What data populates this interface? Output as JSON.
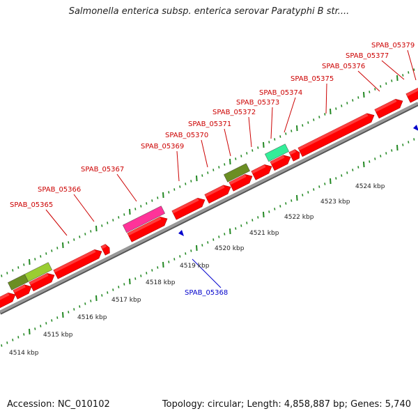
{
  "title": "Salmonella enterica subsp. enterica serovar Paratyphi B str....",
  "footer": {
    "accession": "Accession: NC_010102",
    "summary": "Topology: circular; Length: 4,858,887 bp; Genes: 5,740"
  },
  "colors": {
    "gene_forward": "#ff0000",
    "gene_reverse": "#0000cc",
    "label_forward": "#cc0000",
    "label_reverse": "#0000cc",
    "backbone": "#999999",
    "tick": "#228822",
    "feature_olive": "#6b8e23",
    "feature_pink": "#ff3399",
    "feature_teal": "#33ee99",
    "feature_lightgreen": "#9acd32"
  },
  "kbp_labels": [
    "4514 kbp",
    "4515 kbp",
    "4516 kbp",
    "4517 kbp",
    "4518 kbp",
    "4519 kbp",
    "4520 kbp",
    "4521 kbp",
    "4522 kbp",
    "4523 kbp",
    "4524 kbp"
  ],
  "gene_labels": [
    {
      "text": "SPAB_05365",
      "strand": "forward"
    },
    {
      "text": "SPAB_05366",
      "strand": "forward"
    },
    {
      "text": "SPAB_05367",
      "strand": "forward"
    },
    {
      "text": "SPAB_05368",
      "strand": "reverse"
    },
    {
      "text": "SPAB_05369",
      "strand": "forward"
    },
    {
      "text": "SPAB_05370",
      "strand": "forward"
    },
    {
      "text": "SPAB_05371",
      "strand": "forward"
    },
    {
      "text": "SPAB_05372",
      "strand": "forward"
    },
    {
      "text": "SPAB_05373",
      "strand": "forward"
    },
    {
      "text": "SPAB_05374",
      "strand": "forward"
    },
    {
      "text": "SPAB_05375",
      "strand": "forward"
    },
    {
      "text": "SPAB_05376",
      "strand": "forward"
    },
    {
      "text": "SPAB_05377",
      "strand": "forward"
    },
    {
      "text": "SPAB_05379",
      "strand": "forward"
    }
  ]
}
